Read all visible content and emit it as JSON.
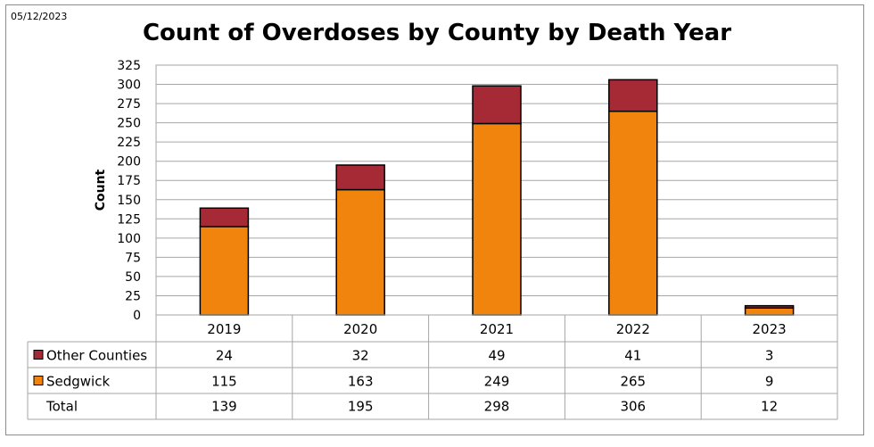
{
  "header": {
    "date": "05/12/2023"
  },
  "chart_data": {
    "type": "bar",
    "stacked": true,
    "title": "Count of Overdoses by County by Death Year",
    "ylabel": "Count",
    "xlabel": "",
    "ylim": [
      0,
      325
    ],
    "ytick_step": 25,
    "grid": true,
    "categories": [
      "2019",
      "2020",
      "2021",
      "2022",
      "2023"
    ],
    "series": [
      {
        "name": "Other Counties",
        "values": [
          24,
          32,
          49,
          41,
          3
        ],
        "color": "#a52a36"
      },
      {
        "name": "Sedgwick",
        "values": [
          115,
          163,
          249,
          265,
          9
        ],
        "color": "#f0840c"
      }
    ],
    "total_label": "Total",
    "totals": [
      139,
      195,
      298,
      306,
      12
    ]
  }
}
